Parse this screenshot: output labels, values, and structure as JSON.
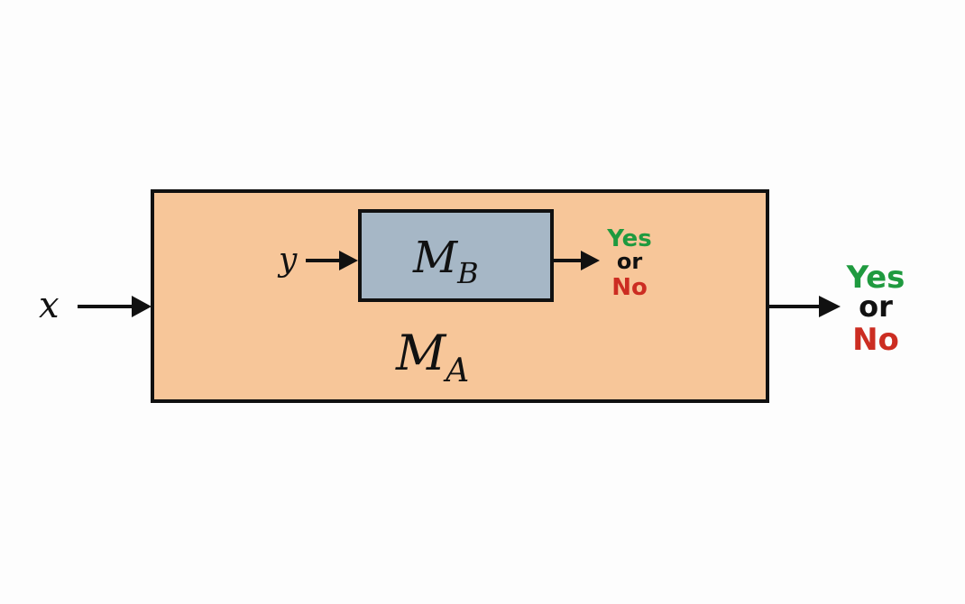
{
  "colors": {
    "outer_box_fill": "#f7c699",
    "inner_box_fill": "#a6b7c6",
    "stroke": "#111111",
    "yes": "#1f9a3f",
    "no": "#cc2d22",
    "or": "#111111"
  },
  "outer_machine": {
    "symbol": "M",
    "subscript": "A",
    "input_symbol": "x",
    "output": {
      "yes": "Yes",
      "or": "or",
      "no": "No"
    }
  },
  "inner_machine": {
    "symbol": "M",
    "subscript": "B",
    "input_symbol": "y",
    "output": {
      "yes": "Yes",
      "or": "or",
      "no": "No"
    }
  }
}
